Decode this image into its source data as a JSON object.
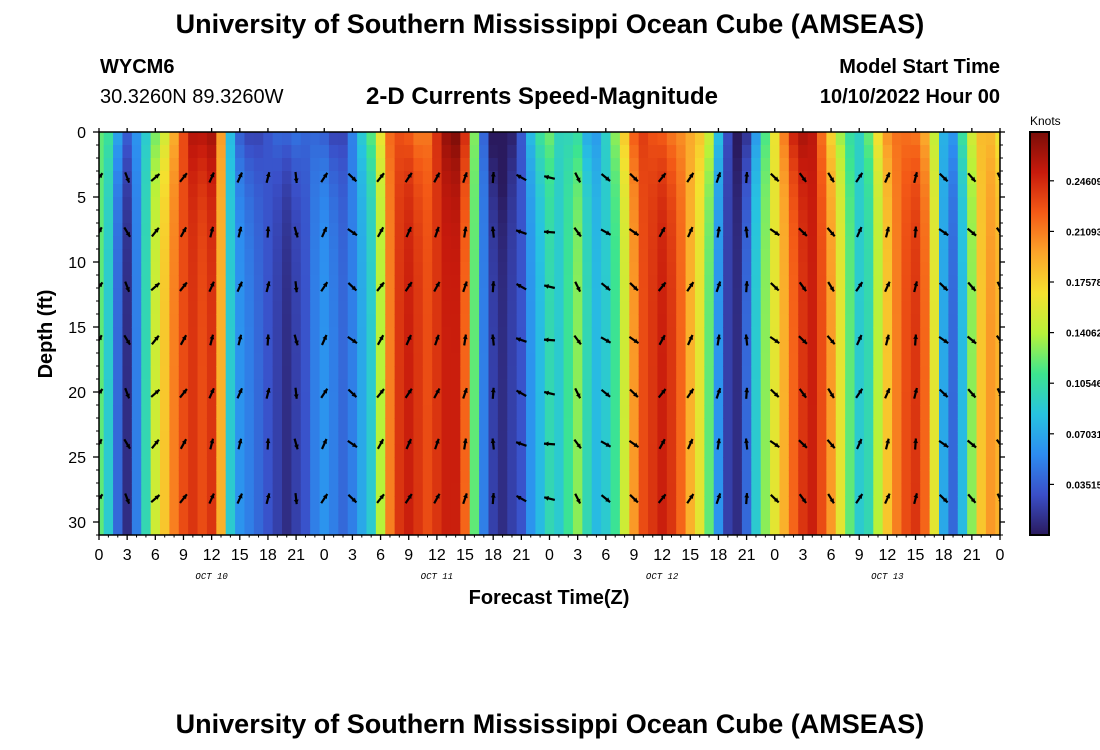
{
  "header": {
    "title": "University of Southern Mississippi Ocean Cube (AMSEAS)",
    "station_id": "WYCM6",
    "station_coords": "30.3260N  89.3260W",
    "variable_title": "2-D Currents Speed-Magnitude",
    "model_start_label": "Model Start Time",
    "model_start_value": "10/10/2022 Hour 00"
  },
  "footer": {
    "repeat_title": "University of Southern Mississippi Ocean Cube (AMSEAS)"
  },
  "colors": {
    "colormap": [
      "#2a1a5e",
      "#3a4fc8",
      "#2d8cf0",
      "#27c3e0",
      "#3de58f",
      "#b7f23a",
      "#f5e02f",
      "#fba42a",
      "#f45a16",
      "#c71a0c",
      "#7a0d08"
    ],
    "arrow": "#000000",
    "frame": "#000000"
  },
  "chart_data": {
    "type": "heatmap",
    "xlabel": "Forecast Time(Z)",
    "ylabel": "Depth (ft)",
    "x_hours_range": [
      0,
      96
    ],
    "x_tick_step_hours": 3,
    "x_tick_labels": [
      "0",
      "3",
      "6",
      "9",
      "12",
      "15",
      "18",
      "21",
      "0",
      "3",
      "6",
      "9",
      "12",
      "15",
      "18",
      "21",
      "0",
      "3",
      "6",
      "9",
      "12",
      "15",
      "18",
      "21",
      "0",
      "3",
      "6",
      "9",
      "12",
      "15",
      "18",
      "21",
      "0"
    ],
    "day_labels": [
      {
        "label": "OCT 10",
        "hour": 12
      },
      {
        "label": "OCT 11",
        "hour": 36
      },
      {
        "label": "OCT 12",
        "hour": 60
      },
      {
        "label": "OCT 13",
        "hour": 84
      }
    ],
    "y_range": [
      0,
      31
    ],
    "y_ticks": [
      0,
      5,
      10,
      15,
      20,
      25,
      30
    ],
    "y_tick_labels": [
      "0",
      "5",
      "10",
      "15",
      "20",
      "25",
      "30"
    ],
    "colorbar": {
      "units": "Knots",
      "min": 0,
      "max": 0.28,
      "tick_values": [
        0.03515,
        0.07031,
        0.10546,
        0.14062,
        0.17578,
        0.21093,
        0.24609
      ],
      "tick_labels": [
        "0.03515",
        "0.07031",
        "0.10546",
        "0.14062",
        "0.17578",
        "0.21093",
        "0.24609"
      ]
    },
    "speed_profile": {
      "hours": [
        0,
        1,
        2,
        3,
        4,
        5,
        6,
        7,
        8,
        9,
        10,
        11,
        12,
        13,
        14,
        15,
        16,
        17,
        18,
        19,
        20,
        21,
        22,
        23,
        24,
        25,
        26,
        27,
        28,
        29,
        30,
        31,
        32,
        33,
        34,
        35,
        36,
        37,
        38,
        39,
        40,
        41,
        42,
        43,
        44,
        45,
        46,
        47,
        48,
        49,
        50,
        51,
        52,
        53,
        54,
        55,
        56,
        57,
        58,
        59,
        60,
        61,
        62,
        63,
        64,
        65,
        66,
        67,
        68,
        69,
        70,
        71,
        72,
        73,
        74,
        75,
        76,
        77,
        78,
        79,
        80,
        81,
        82,
        83,
        84,
        85,
        86,
        87,
        88,
        89,
        90,
        91,
        92,
        93,
        94,
        95,
        96
      ],
      "knots": [
        0.12,
        0.09,
        0.04,
        0.01,
        0.05,
        0.1,
        0.15,
        0.18,
        0.21,
        0.23,
        0.24,
        0.23,
        0.24,
        0.19,
        0.09,
        0.06,
        0.05,
        0.04,
        0.03,
        0.02,
        0.01,
        0.02,
        0.03,
        0.05,
        0.06,
        0.05,
        0.04,
        0.05,
        0.07,
        0.09,
        0.14,
        0.21,
        0.24,
        0.25,
        0.24,
        0.23,
        0.24,
        0.25,
        0.25,
        0.22,
        0.12,
        0.05,
        0.02,
        0.01,
        0.02,
        0.03,
        0.06,
        0.08,
        0.1,
        0.09,
        0.11,
        0.13,
        0.1,
        0.08,
        0.09,
        0.11,
        0.15,
        0.2,
        0.23,
        0.24,
        0.25,
        0.24,
        0.22,
        0.19,
        0.16,
        0.12,
        0.06,
        0.02,
        0.01,
        0.04,
        0.09,
        0.13,
        0.16,
        0.19,
        0.22,
        0.24,
        0.25,
        0.23,
        0.2,
        0.16,
        0.12,
        0.09,
        0.1,
        0.14,
        0.18,
        0.21,
        0.23,
        0.24,
        0.22,
        0.16,
        0.07,
        0.04,
        0.08,
        0.13,
        0.18,
        0.2,
        0.19
      ]
    },
    "arrows": {
      "depths_ft": [
        3.5,
        7.7,
        11.9,
        16.0,
        20.1,
        24.0,
        28.2
      ],
      "note": "Direction glyphs (arrows) at 3-hour intervals, every depth level shown; angles are headings in degrees (0=east, 90=north).",
      "hours": [
        0,
        3,
        6,
        9,
        12,
        15,
        18,
        21,
        24,
        27,
        30,
        33,
        36,
        39,
        42,
        45,
        48,
        51,
        54,
        57,
        60,
        63,
        66,
        69,
        72,
        75,
        78,
        81,
        84,
        87,
        90,
        93,
        96
      ],
      "direction_deg": [
        55,
        -65,
        45,
        55,
        70,
        70,
        80,
        -80,
        60,
        -40,
        55,
        60,
        65,
        75,
        90,
        155,
        170,
        -60,
        -35,
        -40,
        55,
        60,
        75,
        90,
        -40,
        -50,
        -55,
        60,
        70,
        80,
        -40,
        -45,
        -60
      ]
    }
  }
}
